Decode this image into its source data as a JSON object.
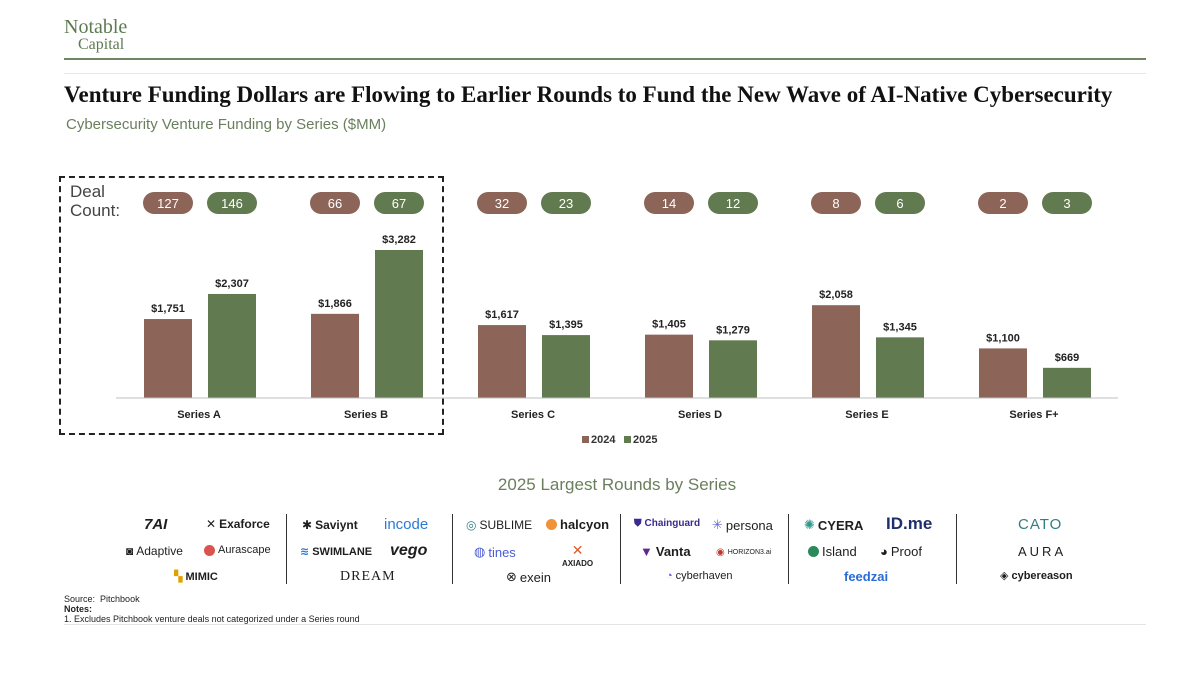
{
  "brand": {
    "line1": "Notable",
    "line2": "Capital"
  },
  "title": "Venture Funding Dollars are Flowing to Earlier Rounds to Fund the New Wave of AI-Native Cybersecurity",
  "subtitle": "Cybersecurity Venture Funding by Series ($MM)",
  "deal_label": {
    "line1": "Deal",
    "line2": "Count:"
  },
  "lower_title": "2025 Largest Rounds by Series",
  "colors": {
    "2024": "#8c6458",
    "2025": "#627a50",
    "brand": "#5e7a50"
  },
  "chart_data": {
    "type": "bar",
    "categories": [
      "Series A",
      "Series B",
      "Series C",
      "Series D",
      "Series E",
      "Series F+"
    ],
    "series": [
      {
        "name": "2024",
        "values": [
          1751,
          1866,
          1617,
          1405,
          2058,
          1100
        ],
        "labels": [
          "$1,751",
          "$1,866",
          "$1,617",
          "$1,405",
          "$2,058",
          "$1,100"
        ],
        "deal_counts": [
          127,
          66,
          32,
          14,
          8,
          2
        ]
      },
      {
        "name": "2025",
        "values": [
          2307,
          3282,
          1395,
          1279,
          1345,
          669
        ],
        "labels": [
          "$2,307",
          "$3,282",
          "$1,395",
          "$1,279",
          "$1,345",
          "$669"
        ],
        "deal_counts": [
          146,
          67,
          23,
          12,
          6,
          3
        ]
      }
    ],
    "ylim": [
      0,
      3282
    ],
    "legend_position": "bottom-center",
    "grid": false
  },
  "logo_groups": [
    {
      "series": "Series A",
      "logos": [
        "7AI",
        "Exaforce",
        "Adaptive",
        "Aurascape",
        "MIMIC"
      ]
    },
    {
      "series": "Series B",
      "logos": [
        "Saviynt",
        "incode",
        "SWIMLANE",
        "vego",
        "DREAM"
      ]
    },
    {
      "series": "Series C",
      "logos": [
        "SUBLIME",
        "halcyon",
        "tines",
        "AXIADO",
        "exein"
      ]
    },
    {
      "series": "Series D",
      "logos": [
        "Chainguard",
        "persona",
        "Vanta",
        "HORIZON3.ai",
        "cyberhaven"
      ]
    },
    {
      "series": "Series E",
      "logos": [
        "CYERA",
        "ID.me",
        "Island",
        "Proof",
        "feedzai"
      ]
    },
    {
      "series": "Series F+",
      "logos": [
        "CATO",
        "AURA",
        "cybereason"
      ]
    }
  ],
  "source": {
    "label": "Source:",
    "text": "Pitchbook",
    "notes_label": "Notes:",
    "note1": "1. Excludes Pitchbook venture deals not categorized under a Series round"
  }
}
